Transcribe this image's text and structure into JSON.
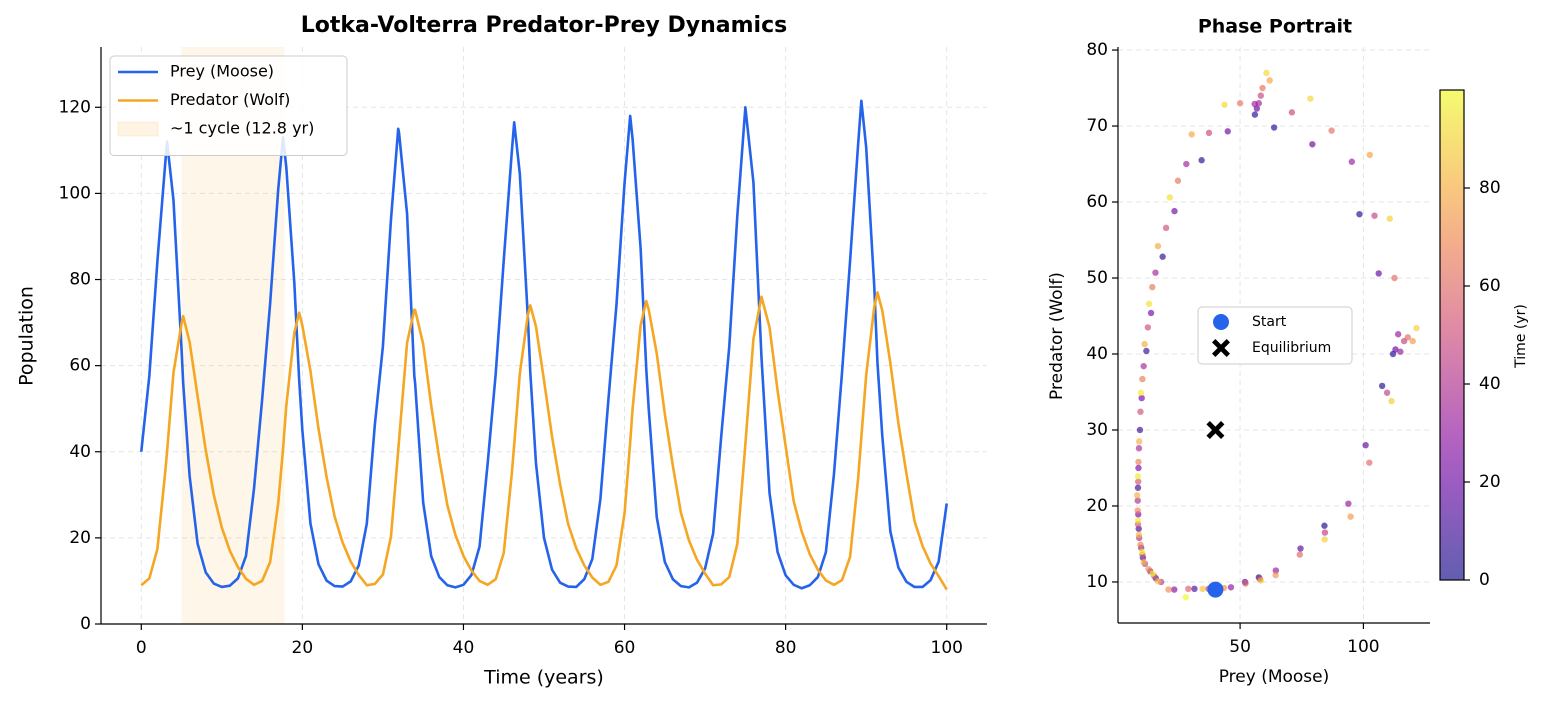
{
  "chart_data": [
    {
      "type": "line",
      "title": "Lotka-Volterra Predator-Prey Dynamics",
      "x_label": "Time (years)",
      "y_label": "Population",
      "x": [
        0,
        1,
        2,
        3,
        3.2,
        4,
        5,
        5.2,
        6,
        7,
        8,
        9,
        10,
        11,
        12,
        13,
        14,
        15,
        16,
        17,
        17.6,
        18,
        19,
        19.6,
        20,
        21,
        22,
        23,
        24,
        25,
        26,
        27,
        28,
        29,
        30,
        31,
        31.9,
        32,
        33,
        33.9,
        34,
        35,
        36,
        37,
        38,
        39,
        40,
        41,
        42,
        43,
        44,
        45,
        46,
        46.3,
        47,
        48,
        48.3,
        49,
        50,
        51,
        52,
        53,
        54,
        55,
        56,
        57,
        58,
        59,
        60,
        60.7,
        61,
        62,
        62.7,
        63,
        64,
        65,
        66,
        67,
        68,
        69,
        70,
        71,
        72,
        73,
        74,
        75,
        76,
        77,
        78,
        79,
        80,
        81,
        82,
        83,
        84,
        85,
        86,
        87,
        88,
        89,
        89.4,
        90,
        91,
        91.4,
        92,
        93,
        94,
        95,
        96,
        97,
        98,
        99,
        100
      ],
      "series": [
        {
          "name": "Prey (Moose)",
          "color": "#2563eb",
          "values": [
            40,
            57.6,
            84.2,
            107.6,
            112,
            98.4,
            63.8,
            56,
            34.4,
            18.6,
            12,
            9.4,
            8.6,
            8.9,
            10.6,
            15.8,
            31.5,
            52,
            74.5,
            100.9,
            113,
            106.2,
            79.3,
            56.8,
            45,
            23.4,
            13.9,
            10.1,
            8.8,
            8.7,
            9.9,
            13.6,
            23.3,
            46.3,
            64.5,
            93.9,
            115,
            114.1,
            95.3,
            57.6,
            55.9,
            28.2,
            15.7,
            10.9,
            9,
            8.5,
            9.1,
            11.4,
            18,
            37.2,
            58,
            84.4,
            109.6,
            116.5,
            104.5,
            71,
            58.4,
            37.4,
            20,
            12.6,
            9.6,
            8.7,
            8.6,
            10.4,
            15.1,
            29,
            52.2,
            74.2,
            102.4,
            118,
            112.6,
            87.1,
            59.1,
            50,
            24.8,
            14.4,
            10.4,
            8.8,
            8.5,
            9.6,
            12.9,
            21,
            43.5,
            64.4,
            94.8,
            120,
            102.6,
            62,
            30.4,
            16.7,
            11.3,
            9.1,
            8.3,
            9,
            10.9,
            16.7,
            34.8,
            58.4,
            84.3,
            111.4,
            121.5,
            110.7,
            78.5,
            60.7,
            43.7,
            21.5,
            13.1,
            9.8,
            8.6,
            8.6,
            10.2,
            14.5,
            28
          ]
        },
        {
          "name": "Predator (Wolf)",
          "color": "#f5a623",
          "values": [
            9,
            10.6,
            17.4,
            35.8,
            40,
            58.4,
            69.8,
            71.5,
            65.5,
            52.8,
            40.4,
            30,
            22.4,
            17,
            13.2,
            10.5,
            9.1,
            10,
            14.4,
            28,
            40.6,
            50.6,
            67.6,
            72.3,
            69.3,
            58.8,
            45.4,
            34.2,
            25,
            18.9,
            14.5,
            11.4,
            9,
            9.3,
            11.5,
            20.3,
            40.3,
            42.6,
            65.3,
            73,
            72.9,
            65,
            50.7,
            38.4,
            27.6,
            20.7,
            15.8,
            12.4,
            10,
            9.1,
            10.4,
            16.5,
            34.9,
            41.7,
            58.2,
            71.8,
            74,
            69.1,
            56.6,
            43.5,
            32.4,
            23.2,
            17.6,
            13.6,
            10.8,
            9.1,
            9.8,
            13.6,
            25.7,
            42.2,
            50,
            69.4,
            75,
            73,
            62.8,
            48.8,
            36.7,
            25.8,
            19.4,
            14.9,
            11.7,
            9,
            9.2,
            10.9,
            18.6,
            41.7,
            66.2,
            76,
            68.9,
            54.2,
            41.3,
            28.5,
            21.4,
            16.2,
            12.6,
            10.1,
            9.1,
            10.2,
            15.6,
            33.8,
            43.4,
            57.8,
            73.6,
            77,
            72.8,
            60.6,
            46.6,
            34.9,
            23.9,
            18.1,
            14,
            11.1,
            8
          ]
        }
      ],
      "span": {
        "name": "~1 cycle (12.8 yr)",
        "start": 5,
        "end": 17.8,
        "color": "#f5a623"
      },
      "xlim": [
        -5,
        105
      ],
      "xticks": [
        0,
        20,
        40,
        60,
        80,
        100
      ],
      "ylim": [
        0,
        134
      ],
      "yticks": [
        0,
        20,
        40,
        60,
        80,
        100,
        120
      ],
      "grid": true,
      "legend": "upper left"
    },
    {
      "type": "scatter",
      "title": "Phase Portrait",
      "x_label": "Prey (Moose)",
      "y_label": "Predator (Wolf)",
      "x": [
        40,
        57.6,
        84.2,
        107.6,
        112,
        98.4,
        63.8,
        56,
        34.4,
        18.6,
        12,
        9.4,
        8.6,
        8.9,
        10.6,
        15.8,
        31.5,
        52,
        74.5,
        100.9,
        113,
        106.2,
        79.3,
        56.8,
        45,
        23.4,
        13.9,
        10.1,
        8.8,
        8.7,
        9.9,
        13.6,
        23.3,
        46.3,
        64.5,
        93.9,
        115,
        114.1,
        95.3,
        57.6,
        55.9,
        28.2,
        15.7,
        10.9,
        9,
        8.5,
        9.1,
        11.4,
        18,
        37.2,
        58,
        84.4,
        109.6,
        116.5,
        104.5,
        71,
        58.4,
        37.4,
        20,
        12.6,
        9.6,
        8.7,
        8.6,
        10.4,
        15.1,
        29,
        52.2,
        74.2,
        102.4,
        118,
        112.6,
        87.1,
        59.1,
        50,
        24.8,
        14.4,
        10.4,
        8.8,
        8.5,
        9.6,
        12.9,
        21,
        43.5,
        64.4,
        94.8,
        120,
        102.6,
        62,
        30.4,
        16.7,
        11.3,
        9.1,
        8.3,
        9,
        10.9,
        16.7,
        34.8,
        58.4,
        84.3,
        111.4,
        121.5,
        110.7,
        78.5,
        60.7,
        43.7,
        21.5,
        13.1,
        9.8,
        8.6,
        8.6,
        10.2,
        14.5,
        28
      ],
      "values": [
        9,
        10.6,
        17.4,
        35.8,
        40,
        58.4,
        69.8,
        71.5,
        65.5,
        52.8,
        40.4,
        30,
        22.4,
        17,
        13.2,
        10.5,
        9.1,
        10,
        14.4,
        28,
        40.6,
        50.6,
        67.6,
        72.3,
        69.3,
        58.8,
        45.4,
        34.2,
        25,
        18.9,
        14.5,
        11.4,
        9,
        9.3,
        11.5,
        20.3,
        40.3,
        42.6,
        65.3,
        73,
        72.9,
        65,
        50.7,
        38.4,
        27.6,
        20.7,
        15.8,
        12.4,
        10,
        9.1,
        10.4,
        16.5,
        34.9,
        41.7,
        58.2,
        71.8,
        74,
        69.1,
        56.6,
        43.5,
        32.4,
        23.2,
        17.6,
        13.6,
        10.8,
        9.1,
        9.8,
        13.6,
        25.7,
        42.2,
        50,
        69.4,
        75,
        73,
        62.8,
        48.8,
        36.7,
        25.8,
        19.4,
        14.9,
        11.7,
        9,
        9.2,
        10.9,
        18.6,
        41.7,
        66.2,
        76,
        68.9,
        54.2,
        41.3,
        28.5,
        21.4,
        16.2,
        12.6,
        10.1,
        9.1,
        10.2,
        15.6,
        33.8,
        43.4,
        57.8,
        73.6,
        77,
        72.8,
        60.6,
        46.6,
        34.9,
        23.9,
        18.1,
        14,
        11.1,
        8
      ],
      "color_values": [
        0,
        1,
        2,
        3,
        3.2,
        4,
        5,
        5.2,
        6,
        7,
        8,
        9,
        10,
        11,
        12,
        13,
        14,
        15,
        16,
        17,
        17.6,
        18,
        19,
        19.6,
        20,
        21,
        22,
        23,
        24,
        25,
        26,
        27,
        28,
        29,
        30,
        31,
        31.9,
        32,
        33,
        33.9,
        34,
        35,
        36,
        37,
        38,
        39,
        40,
        41,
        42,
        43,
        44,
        45,
        46,
        46.3,
        47,
        48,
        48.3,
        49,
        50,
        51,
        52,
        53,
        54,
        55,
        56,
        57,
        58,
        59,
        60,
        60.7,
        61,
        62,
        62.7,
        63,
        64,
        65,
        66,
        67,
        68,
        69,
        70,
        71,
        72,
        73,
        74,
        75,
        76,
        77,
        78,
        79,
        80,
        81,
        82,
        83,
        84,
        85,
        86,
        87,
        88,
        89,
        89.4,
        90,
        91,
        91.4,
        92,
        93,
        94,
        95,
        96,
        97,
        98,
        99,
        100
      ],
      "colormap": "plasma",
      "colorbar": {
        "label": "Time (yr)",
        "range": [
          0,
          100
        ],
        "ticks": [
          0,
          20,
          40,
          60,
          80
        ]
      },
      "markers": [
        {
          "name": "Start",
          "x": 40,
          "y": 9,
          "color": "#2563eb",
          "marker": "circle"
        },
        {
          "name": "Equilibrium",
          "x": 40,
          "y": 30,
          "color": "#000000",
          "marker": "cross"
        }
      ],
      "xlim": [
        0.5,
        127
      ],
      "xticks": [
        50,
        100
      ],
      "ylim": [
        4.6,
        80.4
      ],
      "yticks": [
        10,
        20,
        30,
        40,
        50,
        60,
        70,
        80
      ],
      "grid": true,
      "legend": "center"
    }
  ]
}
